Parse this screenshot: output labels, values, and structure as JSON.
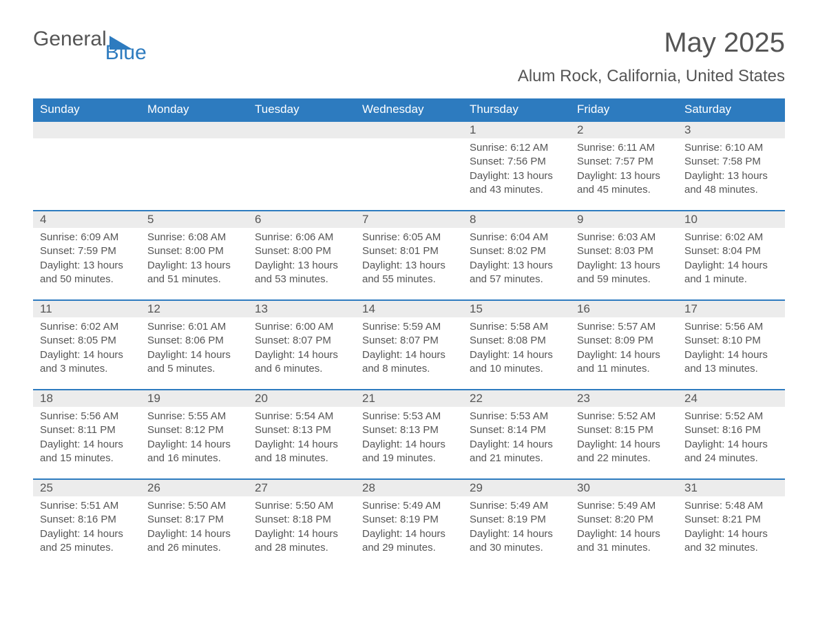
{
  "brand": {
    "text1": "General",
    "text2": "Blue",
    "text_color": "#555555",
    "accent_color": "#2d7bbf"
  },
  "title": "May 2025",
  "location": "Alum Rock, California, United States",
  "colors": {
    "header_bg": "#2d7bbf",
    "header_text": "#ffffff",
    "daynum_bg": "#ececec",
    "body_bg": "#ffffff",
    "text": "#555555",
    "row_border": "#2d7bbf"
  },
  "weekdays": [
    "Sunday",
    "Monday",
    "Tuesday",
    "Wednesday",
    "Thursday",
    "Friday",
    "Saturday"
  ],
  "weeks": [
    [
      {
        "day": "",
        "sunrise": "",
        "sunset": "",
        "daylight": ""
      },
      {
        "day": "",
        "sunrise": "",
        "sunset": "",
        "daylight": ""
      },
      {
        "day": "",
        "sunrise": "",
        "sunset": "",
        "daylight": ""
      },
      {
        "day": "",
        "sunrise": "",
        "sunset": "",
        "daylight": ""
      },
      {
        "day": "1",
        "sunrise": "Sunrise: 6:12 AM",
        "sunset": "Sunset: 7:56 PM",
        "daylight": "Daylight: 13 hours and 43 minutes."
      },
      {
        "day": "2",
        "sunrise": "Sunrise: 6:11 AM",
        "sunset": "Sunset: 7:57 PM",
        "daylight": "Daylight: 13 hours and 45 minutes."
      },
      {
        "day": "3",
        "sunrise": "Sunrise: 6:10 AM",
        "sunset": "Sunset: 7:58 PM",
        "daylight": "Daylight: 13 hours and 48 minutes."
      }
    ],
    [
      {
        "day": "4",
        "sunrise": "Sunrise: 6:09 AM",
        "sunset": "Sunset: 7:59 PM",
        "daylight": "Daylight: 13 hours and 50 minutes."
      },
      {
        "day": "5",
        "sunrise": "Sunrise: 6:08 AM",
        "sunset": "Sunset: 8:00 PM",
        "daylight": "Daylight: 13 hours and 51 minutes."
      },
      {
        "day": "6",
        "sunrise": "Sunrise: 6:06 AM",
        "sunset": "Sunset: 8:00 PM",
        "daylight": "Daylight: 13 hours and 53 minutes."
      },
      {
        "day": "7",
        "sunrise": "Sunrise: 6:05 AM",
        "sunset": "Sunset: 8:01 PM",
        "daylight": "Daylight: 13 hours and 55 minutes."
      },
      {
        "day": "8",
        "sunrise": "Sunrise: 6:04 AM",
        "sunset": "Sunset: 8:02 PM",
        "daylight": "Daylight: 13 hours and 57 minutes."
      },
      {
        "day": "9",
        "sunrise": "Sunrise: 6:03 AM",
        "sunset": "Sunset: 8:03 PM",
        "daylight": "Daylight: 13 hours and 59 minutes."
      },
      {
        "day": "10",
        "sunrise": "Sunrise: 6:02 AM",
        "sunset": "Sunset: 8:04 PM",
        "daylight": "Daylight: 14 hours and 1 minute."
      }
    ],
    [
      {
        "day": "11",
        "sunrise": "Sunrise: 6:02 AM",
        "sunset": "Sunset: 8:05 PM",
        "daylight": "Daylight: 14 hours and 3 minutes."
      },
      {
        "day": "12",
        "sunrise": "Sunrise: 6:01 AM",
        "sunset": "Sunset: 8:06 PM",
        "daylight": "Daylight: 14 hours and 5 minutes."
      },
      {
        "day": "13",
        "sunrise": "Sunrise: 6:00 AM",
        "sunset": "Sunset: 8:07 PM",
        "daylight": "Daylight: 14 hours and 6 minutes."
      },
      {
        "day": "14",
        "sunrise": "Sunrise: 5:59 AM",
        "sunset": "Sunset: 8:07 PM",
        "daylight": "Daylight: 14 hours and 8 minutes."
      },
      {
        "day": "15",
        "sunrise": "Sunrise: 5:58 AM",
        "sunset": "Sunset: 8:08 PM",
        "daylight": "Daylight: 14 hours and 10 minutes."
      },
      {
        "day": "16",
        "sunrise": "Sunrise: 5:57 AM",
        "sunset": "Sunset: 8:09 PM",
        "daylight": "Daylight: 14 hours and 11 minutes."
      },
      {
        "day": "17",
        "sunrise": "Sunrise: 5:56 AM",
        "sunset": "Sunset: 8:10 PM",
        "daylight": "Daylight: 14 hours and 13 minutes."
      }
    ],
    [
      {
        "day": "18",
        "sunrise": "Sunrise: 5:56 AM",
        "sunset": "Sunset: 8:11 PM",
        "daylight": "Daylight: 14 hours and 15 minutes."
      },
      {
        "day": "19",
        "sunrise": "Sunrise: 5:55 AM",
        "sunset": "Sunset: 8:12 PM",
        "daylight": "Daylight: 14 hours and 16 minutes."
      },
      {
        "day": "20",
        "sunrise": "Sunrise: 5:54 AM",
        "sunset": "Sunset: 8:13 PM",
        "daylight": "Daylight: 14 hours and 18 minutes."
      },
      {
        "day": "21",
        "sunrise": "Sunrise: 5:53 AM",
        "sunset": "Sunset: 8:13 PM",
        "daylight": "Daylight: 14 hours and 19 minutes."
      },
      {
        "day": "22",
        "sunrise": "Sunrise: 5:53 AM",
        "sunset": "Sunset: 8:14 PM",
        "daylight": "Daylight: 14 hours and 21 minutes."
      },
      {
        "day": "23",
        "sunrise": "Sunrise: 5:52 AM",
        "sunset": "Sunset: 8:15 PM",
        "daylight": "Daylight: 14 hours and 22 minutes."
      },
      {
        "day": "24",
        "sunrise": "Sunrise: 5:52 AM",
        "sunset": "Sunset: 8:16 PM",
        "daylight": "Daylight: 14 hours and 24 minutes."
      }
    ],
    [
      {
        "day": "25",
        "sunrise": "Sunrise: 5:51 AM",
        "sunset": "Sunset: 8:16 PM",
        "daylight": "Daylight: 14 hours and 25 minutes."
      },
      {
        "day": "26",
        "sunrise": "Sunrise: 5:50 AM",
        "sunset": "Sunset: 8:17 PM",
        "daylight": "Daylight: 14 hours and 26 minutes."
      },
      {
        "day": "27",
        "sunrise": "Sunrise: 5:50 AM",
        "sunset": "Sunset: 8:18 PM",
        "daylight": "Daylight: 14 hours and 28 minutes."
      },
      {
        "day": "28",
        "sunrise": "Sunrise: 5:49 AM",
        "sunset": "Sunset: 8:19 PM",
        "daylight": "Daylight: 14 hours and 29 minutes."
      },
      {
        "day": "29",
        "sunrise": "Sunrise: 5:49 AM",
        "sunset": "Sunset: 8:19 PM",
        "daylight": "Daylight: 14 hours and 30 minutes."
      },
      {
        "day": "30",
        "sunrise": "Sunrise: 5:49 AM",
        "sunset": "Sunset: 8:20 PM",
        "daylight": "Daylight: 14 hours and 31 minutes."
      },
      {
        "day": "31",
        "sunrise": "Sunrise: 5:48 AM",
        "sunset": "Sunset: 8:21 PM",
        "daylight": "Daylight: 14 hours and 32 minutes."
      }
    ]
  ]
}
